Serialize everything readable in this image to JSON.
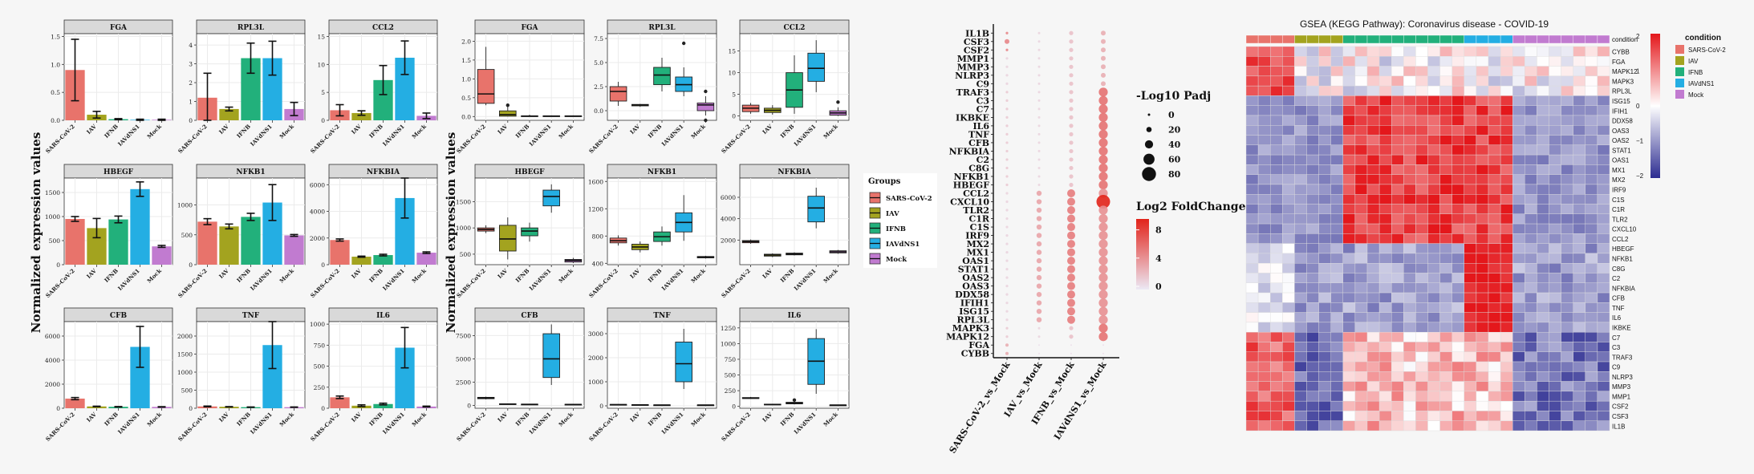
{
  "colors": {
    "SARS-CoV-2": "#e8736b",
    "IAV": "#a3a31f",
    "IFNB": "#22b07b",
    "IAVdNS1": "#24aee3",
    "Mock": "#c17bd0",
    "strip": "#d9d9d9",
    "panel": "#ffffff",
    "grid": "#ebebeb",
    "heat_low": "#2c2c91",
    "heat_mid": "#ffffff",
    "heat_high": "#e4171b",
    "dot_low": "#ece9f5",
    "dot_high": "#e2231a"
  },
  "barplots": {
    "ylabel": "Normalized expression values",
    "groups": [
      "SARS-CoV-2",
      "IAV",
      "IFNB",
      "IAVdNS1",
      "Mock"
    ],
    "panels": [
      {
        "gene": "FGA",
        "ticks": [
          0.0,
          0.5,
          1.0,
          1.5
        ],
        "ymax": 1.55,
        "mean": [
          0.9,
          0.1,
          0.02,
          0.01,
          0.01
        ],
        "err": [
          0.55,
          0.06,
          0.01,
          0.01,
          0.01
        ]
      },
      {
        "gene": "RPL3L",
        "ticks": [
          0,
          1,
          2,
          3,
          4
        ],
        "ymax": 4.6,
        "mean": [
          1.2,
          0.6,
          3.3,
          3.3,
          0.6
        ],
        "err": [
          1.3,
          0.1,
          0.8,
          0.9,
          0.35
        ]
      },
      {
        "gene": "CCL2",
        "ticks": [
          0,
          5,
          10,
          15
        ],
        "ymax": 15.5,
        "mean": [
          1.8,
          1.3,
          7.2,
          11.2,
          0.8
        ],
        "err": [
          1.0,
          0.4,
          2.6,
          3.0,
          0.5
        ]
      },
      {
        "gene": "HBEGF",
        "ticks": [
          0,
          500,
          1000,
          1500
        ],
        "ymax": 1800,
        "mean": [
          950,
          760,
          940,
          1570,
          380
        ],
        "err": [
          50,
          200,
          70,
          150,
          20
        ]
      },
      {
        "gene": "NFKB1",
        "ticks": [
          0,
          500,
          1000
        ],
        "ymax": 1450,
        "mean": [
          720,
          640,
          800,
          1040,
          490
        ],
        "err": [
          50,
          40,
          60,
          300,
          15
        ]
      },
      {
        "gene": "NFKBIA",
        "ticks": [
          0,
          2000,
          4000,
          6000
        ],
        "ymax": 6500,
        "mean": [
          1850,
          600,
          720,
          5000,
          900
        ],
        "err": [
          80,
          40,
          60,
          1500,
          60
        ]
      },
      {
        "gene": "CFB",
        "ticks": [
          0,
          2000,
          4000,
          6000
        ],
        "ymax": 7200,
        "mean": [
          800,
          150,
          120,
          5100,
          110
        ],
        "err": [
          90,
          20,
          20,
          1700,
          20
        ]
      },
      {
        "gene": "TNF",
        "ticks": [
          0,
          500,
          1000,
          1500,
          2000
        ],
        "ymax": 2400,
        "mean": [
          50,
          40,
          30,
          1750,
          30
        ],
        "err": [
          10,
          5,
          5,
          650,
          5
        ]
      },
      {
        "gene": "IL6",
        "ticks": [
          0,
          250,
          500,
          750,
          1000
        ],
        "ymax": 1030,
        "mean": [
          130,
          30,
          50,
          720,
          20
        ],
        "err": [
          15,
          10,
          10,
          240,
          5
        ]
      }
    ]
  },
  "boxplots": {
    "ylabel": "Normalized expression values",
    "legend_title": "Groups",
    "legend_items": [
      "SARS-CoV-2",
      "IAV",
      "IFNB",
      "IAVdNS1",
      "Mock"
    ],
    "panels": [
      {
        "gene": "FGA",
        "ticks": [
          0.0,
          0.5,
          1.0,
          1.5,
          2.0
        ],
        "ymin": -0.1,
        "ymax": 2.2,
        "boxes": [
          [
            0.3,
            0.35,
            0.6,
            1.25,
            1.85
          ],
          [
            0,
            0.01,
            0.05,
            0.15,
            0.3
          ],
          [
            0,
            0,
            0.01,
            0.02,
            0.05
          ],
          [
            0,
            0,
            0.01,
            0.02,
            0.03
          ],
          [
            0,
            0,
            0.01,
            0.02,
            0.03
          ]
        ],
        "outliers": [
          [],
          [
            [
              0.3
            ]
          ],
          [],
          [],
          []
        ]
      },
      {
        "gene": "RPL3L",
        "ticks": [
          0.0,
          2.5,
          5.0,
          7.5
        ],
        "ymin": -1.0,
        "ymax": 8.0,
        "boxes": [
          [
            0.5,
            1.0,
            2.0,
            2.5,
            3.0
          ],
          [
            0.4,
            0.5,
            0.6,
            0.65,
            0.7
          ],
          [
            2.0,
            2.7,
            3.7,
            4.5,
            5.5
          ],
          [
            1.5,
            2.0,
            2.7,
            3.5,
            4.5
          ],
          [
            -0.5,
            0,
            0.6,
            0.8,
            1.5
          ]
        ],
        "outliers": [
          [],
          [],
          [],
          [
            [
              7.0
            ]
          ],
          [
            [
              2.0
            ],
            [
              -1.0
            ]
          ]
        ]
      },
      {
        "gene": "CCL2",
        "ticks": [
          0,
          5,
          10,
          15
        ],
        "ymin": -1,
        "ymax": 19,
        "boxes": [
          [
            0.5,
            1.0,
            1.8,
            2.5,
            3.0
          ],
          [
            0.3,
            0.8,
            1.3,
            1.8,
            2.5
          ],
          [
            0.5,
            2.0,
            6.0,
            10.0,
            14.0
          ],
          [
            5.5,
            8.0,
            11.0,
            14.5,
            17.5
          ],
          [
            0,
            0.2,
            0.7,
            1.2,
            2.0
          ]
        ],
        "outliers": [
          [],
          [],
          [],
          [],
          [
            [
              3.2
            ]
          ]
        ]
      },
      {
        "gene": "HBEGF",
        "ticks": [
          500,
          1000,
          1500
        ],
        "ymin": 300,
        "ymax": 1950,
        "boxes": [
          [
            900,
            940,
            970,
            1000,
            1050
          ],
          [
            400,
            560,
            790,
            1050,
            1200
          ],
          [
            740,
            850,
            940,
            1000,
            1100
          ],
          [
            1290,
            1420,
            1600,
            1720,
            1830
          ],
          [
            330,
            350,
            380,
            400,
            430
          ]
        ],
        "outliers": [
          [],
          [],
          [],
          [],
          []
        ]
      },
      {
        "gene": "NFKB1",
        "ticks": [
          400,
          800,
          1200,
          1600
        ],
        "ymin": 380,
        "ymax": 1650,
        "boxes": [
          [
            660,
            700,
            730,
            770,
            810
          ],
          [
            560,
            600,
            640,
            680,
            720
          ],
          [
            660,
            720,
            790,
            860,
            940
          ],
          [
            730,
            860,
            1000,
            1140,
            1400
          ],
          [
            470,
            480,
            490,
            500,
            510
          ]
        ],
        "outliers": [
          [],
          [],
          [],
          [],
          []
        ]
      },
      {
        "gene": "NFKBIA",
        "ticks": [
          2000,
          4000,
          6000
        ],
        "ymin": -300,
        "ymax": 7800,
        "boxes": [
          [
            1650,
            1750,
            1850,
            1950,
            2050
          ],
          [
            400,
            500,
            600,
            680,
            760
          ],
          [
            560,
            620,
            700,
            780,
            850
          ],
          [
            3100,
            3700,
            5000,
            6100,
            6900
          ],
          [
            720,
            800,
            900,
            1000,
            1080
          ]
        ],
        "outliers": [
          [],
          [],
          [],
          [],
          []
        ]
      },
      {
        "gene": "CFB",
        "ticks": [
          0,
          2500,
          5000,
          7500
        ],
        "ymin": -300,
        "ymax": 9000,
        "boxes": [
          [
            650,
            720,
            800,
            870,
            940
          ],
          [
            100,
            120,
            150,
            180,
            210
          ],
          [
            80,
            100,
            120,
            140,
            160
          ],
          [
            2200,
            3000,
            5000,
            7700,
            8700
          ],
          [
            80,
            95,
            110,
            125,
            140
          ]
        ],
        "outliers": [
          [],
          [],
          [],
          [],
          []
        ]
      },
      {
        "gene": "TNF",
        "ticks": [
          0,
          1000,
          2000,
          3000
        ],
        "ymin": -100,
        "ymax": 3500,
        "boxes": [
          [
            30,
            40,
            50,
            60,
            70
          ],
          [
            20,
            30,
            40,
            50,
            60
          ],
          [
            10,
            20,
            30,
            40,
            50
          ],
          [
            700,
            1000,
            1750,
            2650,
            3200
          ],
          [
            15,
            22,
            30,
            38,
            45
          ]
        ],
        "outliers": [
          [],
          [],
          [],
          [],
          []
        ]
      },
      {
        "gene": "IL6",
        "ticks": [
          0,
          250,
          500,
          750,
          1000,
          1250
        ],
        "ymin": -30,
        "ymax": 1350,
        "boxes": [
          [
            120,
            125,
            130,
            140,
            150
          ],
          [
            20,
            25,
            30,
            35,
            40
          ],
          [
            30,
            40,
            50,
            65,
            80
          ],
          [
            200,
            350,
            720,
            1080,
            1230
          ],
          [
            15,
            18,
            20,
            22,
            25
          ]
        ],
        "outliers": [
          [],
          [],
          [
            [
              100
            ]
          ],
          [],
          []
        ]
      }
    ]
  },
  "dotplot": {
    "genes": [
      "IL1B",
      "CSF3",
      "CSF2",
      "MMP1",
      "MMP3",
      "NLRP3",
      "C9",
      "TRAF3",
      "C3",
      "C7",
      "IKBKE",
      "IL6",
      "TNF",
      "CFB",
      "NFKBIA",
      "C2",
      "C8G",
      "NFKB1",
      "HBEGF",
      "CCL2",
      "CXCL10",
      "TLR2",
      "C1R",
      "C1S",
      "IRF9",
      "MX2",
      "MX1",
      "OAS1",
      "STAT1",
      "OAS2",
      "OAS3",
      "DDX58",
      "IFIH1",
      "ISG15",
      "RPL3L",
      "MAPK3",
      "MAPK12",
      "FGA",
      "CYBB"
    ],
    "comparisons": [
      "SARS-CoV-2_vs_Mock",
      "IAV_vs_Mock",
      "IFNB_vs_Mock",
      "IAVdNS1_vs_Mock"
    ],
    "size_legend_title": "-Log10 Padj",
    "size_legend_values": [
      0,
      20,
      40,
      60,
      80
    ],
    "color_legend_title": "Log2 FoldChange",
    "color_legend_ticks": [
      0,
      4,
      8
    ]
  },
  "chart_data": {
    "type": "heatmap",
    "title": "GSEA (KEGG Pathway): Coronavirus disease - COVID-19",
    "legend_title": "condition",
    "legend_items": [
      "SARS-CoV-2",
      "IAV",
      "IFNB",
      "IAVdNS1",
      "Mock"
    ],
    "scale_ticks": [
      2,
      1,
      0,
      -1,
      -2
    ],
    "column_conditions": [
      "SARS-CoV-2",
      "SARS-CoV-2",
      "SARS-CoV-2",
      "SARS-CoV-2",
      "IAV",
      "IAV",
      "IAV",
      "IAV",
      "IFNB",
      "IFNB",
      "IFNB",
      "IFNB",
      "IFNB",
      "IFNB",
      "IFNB",
      "IFNB",
      "IFNB",
      "IFNB",
      "IAVdNS1",
      "IAVdNS1",
      "IAVdNS1",
      "IAVdNS1",
      "Mock",
      "Mock",
      "Mock",
      "Mock",
      "Mock",
      "Mock",
      "Mock",
      "Mock"
    ],
    "rows": [
      "CYBB",
      "FGA",
      "MAPK12",
      "MAPK3",
      "RPL3L",
      "ISG15",
      "IFIH1",
      "DDX58",
      "OAS3",
      "OAS2",
      "STAT1",
      "OAS1",
      "MX1",
      "MX2",
      "IRF9",
      "C1S",
      "C1R",
      "TLR2",
      "CXCL10",
      "CCL2",
      "HBEGF",
      "NFKB1",
      "C8G",
      "C2",
      "NFKBIA",
      "CFB",
      "TNF",
      "IL6",
      "IKBKE",
      "C7",
      "C3",
      "TRAF3",
      "C9",
      "NLRP3",
      "MMP3",
      "MMP1",
      "CSF2",
      "CSF3",
      "IL1B"
    ]
  }
}
